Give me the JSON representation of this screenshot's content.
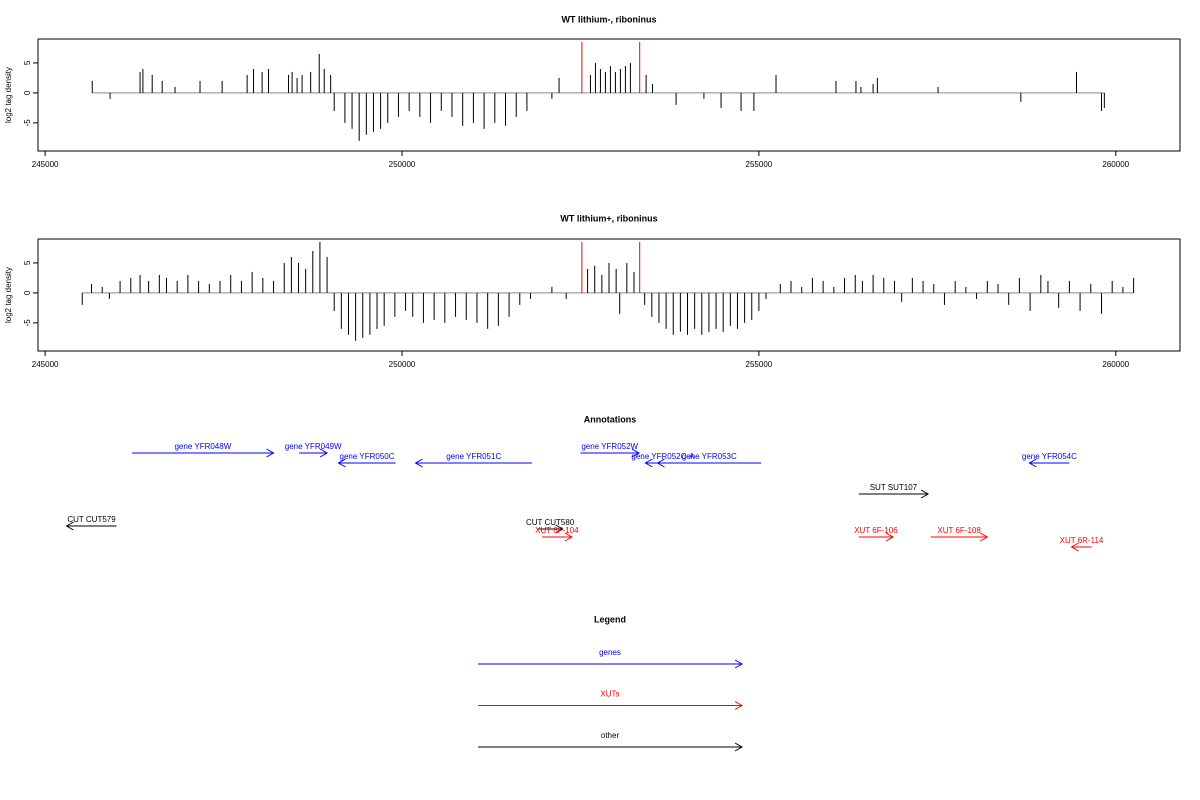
{
  "chart_data": [
    {
      "type": "bar",
      "title": "WT lithium-, riboninus",
      "ylabel": "log2 tag density",
      "xlim": [
        244900,
        260900
      ],
      "ylim": [
        -9.7,
        9
      ],
      "xticks": [
        245000,
        250000,
        255000,
        260000
      ],
      "yticks": [
        -5,
        0,
        5
      ],
      "series": [
        {
          "color": "#000000",
          "x": [
            245660,
            245910,
            246330,
            246370,
            246500,
            246640,
            246820,
            247170,
            247480,
            247830,
            247920,
            248040,
            248130,
            248410,
            248460,
            248530,
            248600,
            248720,
            248840,
            248910,
            249000,
            249050,
            249200,
            249300,
            249400,
            249500,
            249600,
            249700,
            249800,
            249950,
            250100,
            250250,
            250400,
            250550,
            250700,
            250850,
            251000,
            251150,
            251300,
            251450,
            251600,
            251750,
            252100,
            252200,
            252640,
            252710,
            252780,
            252850,
            252920,
            252990,
            253060,
            253130,
            253200,
            253420,
            253510,
            253840,
            254230,
            254470,
            254750,
            254930,
            255240,
            256080,
            256360,
            256430,
            256600,
            256660,
            257510,
            258670,
            259450,
            259800,
            259840
          ],
          "values": [
            2,
            -1,
            3.5,
            4,
            3,
            2,
            1,
            2,
            2,
            3,
            4,
            3.5,
            4,
            3,
            3.5,
            2.5,
            3,
            3.5,
            6.5,
            4,
            3,
            -3,
            -5,
            -6,
            -8,
            -7,
            -6.5,
            -6,
            -5,
            -4,
            -3,
            -4,
            -5,
            -3,
            -4,
            -5.5,
            -5,
            -6,
            -5,
            -5.5,
            -4,
            -3,
            -1,
            2.5,
            3,
            5,
            4,
            3.5,
            4.5,
            3.5,
            4,
            4.5,
            5,
            3,
            1.5,
            -2,
            -1,
            -2.5,
            -3,
            -3,
            3,
            2,
            2,
            1,
            1.5,
            2.5,
            1,
            -1.5,
            3.5,
            -3,
            -2.5
          ]
        },
        {
          "color": "#ff0000",
          "x": [
            252520,
            253330
          ],
          "values": [
            8.5,
            8.5
          ]
        }
      ]
    },
    {
      "type": "bar",
      "title": "WT lithium+, riboninus",
      "ylabel": "log2 tag density",
      "xlim": [
        244900,
        260900
      ],
      "ylim": [
        -9.7,
        9
      ],
      "xticks": [
        245000,
        250000,
        255000,
        260000
      ],
      "yticks": [
        -5,
        0,
        5
      ],
      "series": [
        {
          "color": "#000000",
          "x": [
            245520,
            245650,
            245800,
            245900,
            246050,
            246200,
            246330,
            246450,
            246600,
            246700,
            246850,
            247000,
            247150,
            247300,
            247450,
            247600,
            247750,
            247900,
            248050,
            248200,
            248350,
            248450,
            248550,
            248650,
            248750,
            248850,
            248950,
            249050,
            249150,
            249250,
            249350,
            249450,
            249550,
            249650,
            249750,
            249900,
            250050,
            250150,
            250300,
            250450,
            250600,
            250750,
            250900,
            251050,
            251200,
            251350,
            251500,
            251650,
            251800,
            252100,
            252300,
            252600,
            252700,
            252800,
            252900,
            253000,
            253050,
            253150,
            253250,
            253400,
            253500,
            253600,
            253700,
            253800,
            253900,
            254000,
            254100,
            254200,
            254300,
            254400,
            254500,
            254600,
            254700,
            254800,
            254900,
            255000,
            255100,
            255300,
            255450,
            255600,
            255750,
            255900,
            256050,
            256200,
            256350,
            256450,
            256600,
            256750,
            256900,
            257000,
            257150,
            257300,
            257450,
            257600,
            257750,
            257900,
            258050,
            258200,
            258350,
            258500,
            258650,
            258800,
            258950,
            259050,
            259200,
            259350,
            259500,
            259650,
            259800,
            259950,
            260100,
            260250
          ],
          "values": [
            -2,
            1.5,
            1,
            -1,
            2,
            2.5,
            3,
            2,
            3,
            2.5,
            2,
            3,
            2,
            1.5,
            2,
            3,
            2,
            3.5,
            2.5,
            2,
            5,
            6,
            5,
            4,
            7,
            8.5,
            6,
            -3,
            -6,
            -7,
            -8,
            -7.5,
            -7,
            -6,
            -5.5,
            -4,
            -3,
            -4,
            -5,
            -4.5,
            -5,
            -4,
            -4.5,
            -5,
            -6,
            -5.5,
            -4,
            -2,
            -1,
            1,
            -1,
            4,
            4.5,
            3,
            5,
            4,
            -3.5,
            5,
            3.5,
            -2,
            -4,
            -5,
            -6,
            -7,
            -6.5,
            -7,
            -6,
            -7,
            -6.5,
            -6,
            -6.5,
            -5.5,
            -6,
            -5,
            -4.5,
            -3,
            -1,
            1.5,
            2,
            1,
            2.5,
            2,
            1,
            2.5,
            3,
            2,
            3,
            2.5,
            2,
            -1.5,
            2.5,
            2,
            1.5,
            -2,
            2,
            1,
            -1,
            2,
            1.5,
            -2,
            2.5,
            -3,
            3,
            2,
            -2.5,
            2,
            -3,
            1.5,
            -3.5,
            2,
            1,
            2.5
          ]
        },
        {
          "color": "#ff0000",
          "x": [
            252520,
            253330
          ],
          "values": [
            8.5,
            8.5
          ]
        }
      ]
    },
    {
      "type": "annotation",
      "title": "Annotations",
      "xlim": [
        244900,
        260900
      ],
      "features": [
        {
          "label": "gene YFR048W",
          "start": 246220,
          "end": 248200,
          "strand": "+",
          "color": "#0000ff"
        },
        {
          "label": "gene YFR049W",
          "start": 248560,
          "end": 248950,
          "strand": "+",
          "color": "#0000ff"
        },
        {
          "label": "gene YFR050C",
          "start": 249110,
          "end": 249910,
          "strand": "-",
          "color": "#0000ff"
        },
        {
          "label": "gene YFR051C",
          "start": 250190,
          "end": 251820,
          "strand": "-",
          "color": "#0000ff"
        },
        {
          "label": "gene YFR052W",
          "start": 252500,
          "end": 253320,
          "strand": "+",
          "color": "#0000ff"
        },
        {
          "label": "gene YFR052C-A",
          "start": 253410,
          "end": 253900,
          "strand": "-",
          "color": "#0000ff"
        },
        {
          "label": "gene YFR053C",
          "start": 253580,
          "end": 255030,
          "strand": "-",
          "color": "#0000ff"
        },
        {
          "label": "gene YFR054C",
          "start": 258790,
          "end": 259350,
          "strand": "-",
          "color": "#0000ff"
        },
        {
          "label": "SUT SUT107",
          "start": 256400,
          "end": 257370,
          "strand": "+",
          "color": "#000000"
        },
        {
          "label": "CUT CUT579",
          "start": 245300,
          "end": 246000,
          "strand": "-",
          "color": "#000000"
        },
        {
          "label": "CUT CUT580",
          "start": 251900,
          "end": 252250,
          "strand": "+",
          "color": "#000000"
        },
        {
          "label": "XUT 6F-104",
          "start": 251960,
          "end": 252380,
          "strand": "+",
          "color": "#ff0000"
        },
        {
          "label": "XUT 6F-106",
          "start": 256400,
          "end": 256880,
          "strand": "+",
          "color": "#ff0000"
        },
        {
          "label": "XUT 6F-108",
          "start": 257410,
          "end": 258200,
          "strand": "+",
          "color": "#ff0000"
        },
        {
          "label": "XUT 6R-114",
          "start": 259380,
          "end": 259660,
          "strand": "-",
          "color": "#ff0000"
        }
      ],
      "legend": {
        "title": "Legend",
        "items": [
          {
            "label": "genes",
            "color": "#0000ff"
          },
          {
            "label": "XUTs",
            "color": "#ff0000"
          },
          {
            "label": "other",
            "color": "#000000"
          }
        ]
      }
    }
  ]
}
